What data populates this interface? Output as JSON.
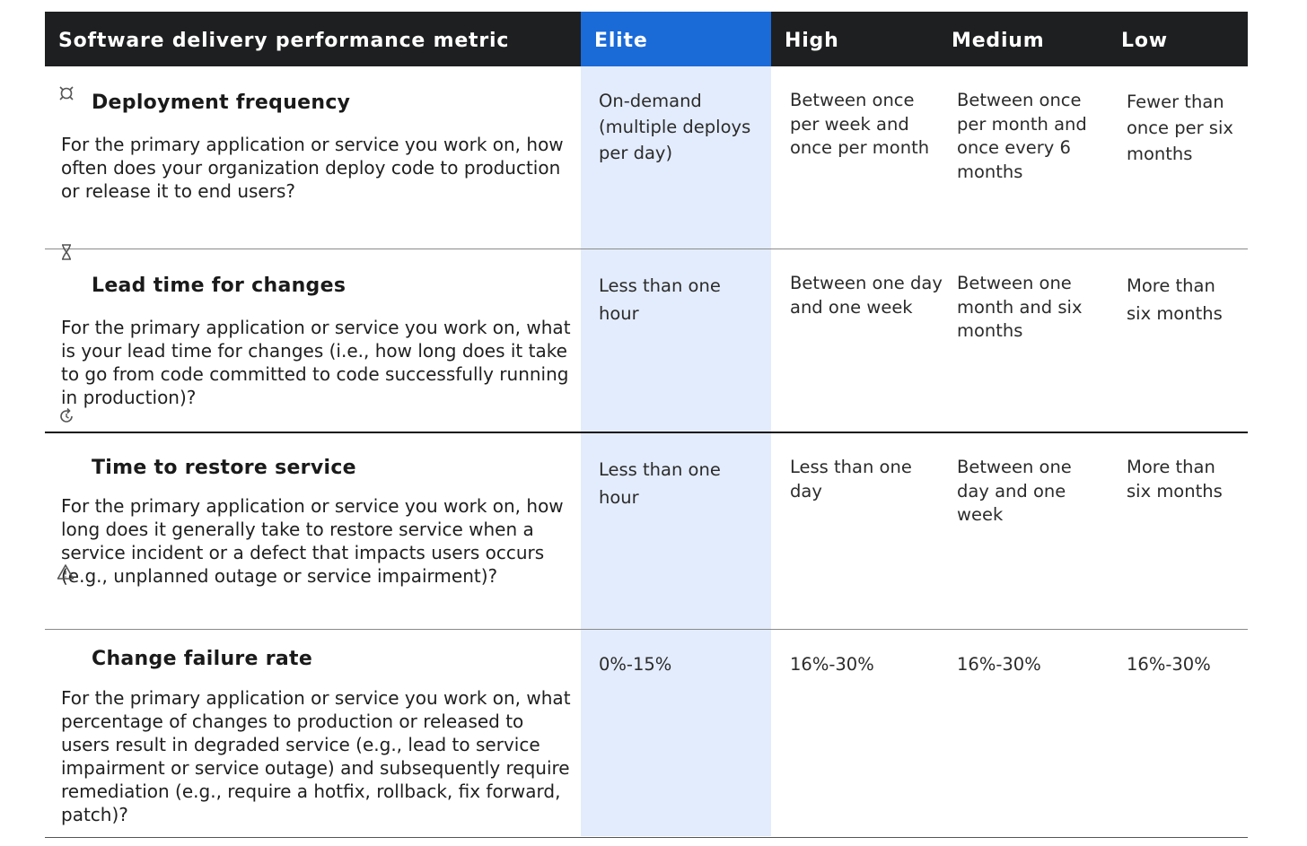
{
  "header": {
    "metric": "Software delivery performance metric",
    "elite": "Elite",
    "high": "High",
    "medium": "Medium",
    "low": "Low"
  },
  "rows": [
    {
      "icon": "deployment-icon",
      "title": "Deployment frequency",
      "question": "For the primary application or service you work on, how often does your organization deploy code to production or release it to end users?",
      "elite": "On-demand (multiple deploys per day)",
      "high": "Between once per week and once per month",
      "medium": "Between once per month and once every 6 months",
      "low": "Fewer than once per six months"
    },
    {
      "icon": "hourglass-icon",
      "title": "Lead time for changes",
      "question": "For the primary application or service you work on, what is your lead time for changes (i.e., how long does it take to go from code committed to code successfully running in production)?",
      "elite": "Less than one hour",
      "high": "Between one day and one week",
      "medium": "Between one month and six months",
      "low": "More than six months"
    },
    {
      "icon": "restore-icon",
      "title": "Time to restore service",
      "question": "For the primary application or service you work on, how long does it generally take to restore service when a service incident or a defect that impacts users occurs (e.g., unplanned outage or service impairment)?",
      "elite": "Less than one hour",
      "high": "Less than one day",
      "medium": "Between one day and one week",
      "low": "More than six months"
    },
    {
      "icon": "warning-icon",
      "title": "Change failure rate",
      "question": "For the primary application or service you work on, what percentage of changes to production or released to users result in degraded service (e.g., lead to service impairment or service outage) and subsequently require remediation (e.g., require a hotfix, rollback, fix forward, patch)?",
      "elite": "0%-15%",
      "high": "16%-30%",
      "medium": "16%-30%",
      "low": "16%-30%"
    }
  ],
  "colors": {
    "header_bg": "#1e1f20",
    "elite_header": "#1a6ad8",
    "elite_band": "#e3ecfc"
  }
}
